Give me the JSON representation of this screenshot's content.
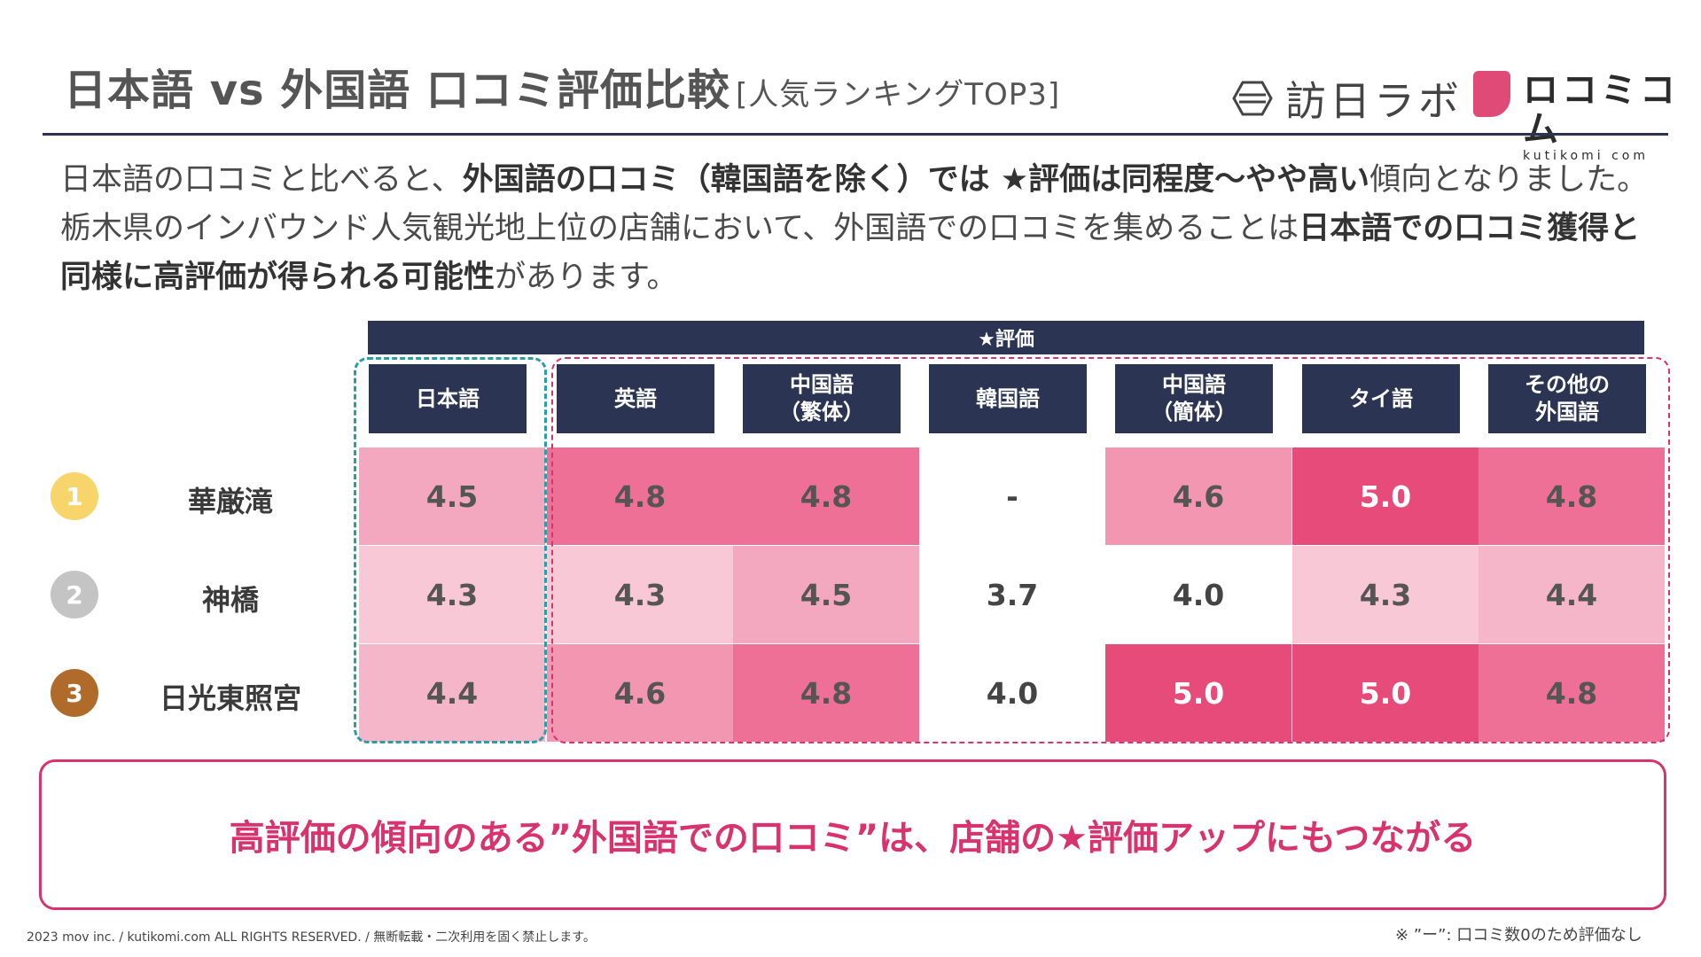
{
  "header": {
    "title": "日本語 vs 外国語 口コミ評価比較",
    "subtitle": "[人気ランキングTOP3]",
    "logo_houjitsu": "訪日ラボ",
    "logo_kutikomi": "ロコミコム",
    "logo_kutikomi_url": "kutikomi com"
  },
  "intro": {
    "l1a": "日本語の口コミと比べると、",
    "l1b": "外国語の口コミ（韓国語を除く）では ★評価は同程度～やや高い",
    "l1c": "傾向となりました。",
    "l2a": "栃木県のインバウンド人気観光地上位の店舗において、外国語での口コミを集めることは",
    "l2b": "日本語での口コミ獲得と同様に高評価が得られる可能性",
    "l2c": "があります。"
  },
  "table": {
    "group_header": "★評価",
    "columns": [
      "日本語",
      "英語",
      "中国語\n（繁体）",
      "韓国語",
      "中国語\n（簡体）",
      "タイ語",
      "その他の\n外国語"
    ],
    "rows": [
      {
        "rank": "1",
        "rank_color": "#f7d56a",
        "name": "華厳滝",
        "values": [
          "4.5",
          "4.8",
          "4.8",
          "-",
          "4.6",
          "5.0",
          "4.8"
        ]
      },
      {
        "rank": "2",
        "rank_color": "#c4c4c4",
        "name": "神橋",
        "values": [
          "4.3",
          "4.3",
          "4.5",
          "3.7",
          "4.0",
          "4.3",
          "4.4"
        ]
      },
      {
        "rank": "3",
        "rank_color": "#b06a2a",
        "name": "日光東照宮",
        "values": [
          "4.4",
          "4.6",
          "4.8",
          "4.0",
          "5.0",
          "5.0",
          "4.8"
        ]
      }
    ]
  },
  "callout": "高評価の傾向のある”外国語での口コミ”は、店舗の★評価アップにもつながる",
  "footer": "2023 mov inc. / kutikomi.com ALL RIGHTS RESERVED. / 無断転載・二次利用を固く禁止します。",
  "note": "※ ”ー”: 口コミ数0のため評価なし"
}
